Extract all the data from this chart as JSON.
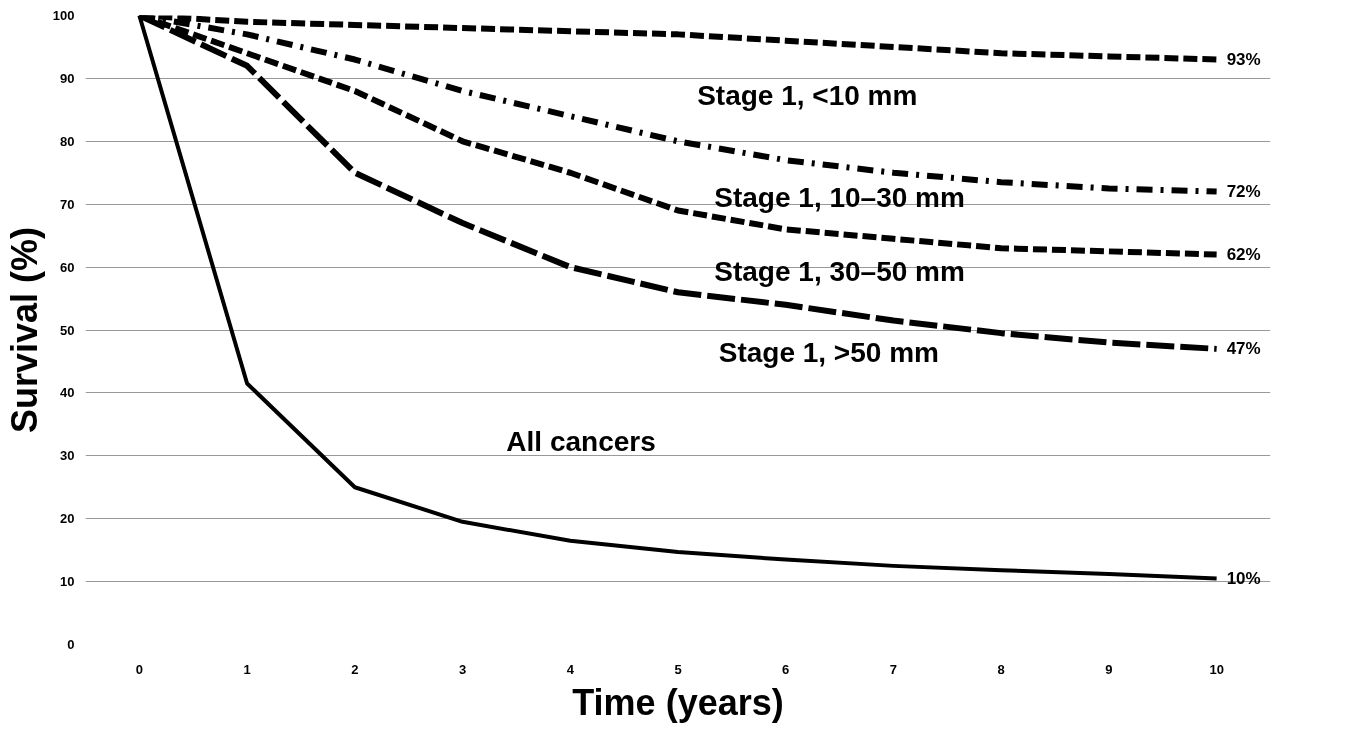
{
  "chart_data": {
    "type": "line",
    "xlabel": "Time (years)",
    "ylabel": "Survival (%)",
    "x": [
      0,
      1,
      2,
      3,
      4,
      5,
      6,
      7,
      8,
      9,
      10
    ],
    "xlim": [
      -0.5,
      10.5
    ],
    "xticks": [
      0,
      1,
      2,
      3,
      4,
      5,
      6,
      7,
      8,
      9,
      10
    ],
    "ylim": [
      0,
      100
    ],
    "yticks": [
      0,
      10,
      20,
      30,
      40,
      50,
      60,
      70,
      80,
      90,
      100
    ],
    "grid": "y",
    "marker": "none",
    "series": [
      {
        "name": "Stage 1, <10 mm",
        "color": "#000000",
        "line_style": "dashed",
        "values": [
          100,
          99,
          98.5,
          98,
          97.5,
          97,
          96,
          95,
          94,
          93.5,
          93
        ],
        "value_labels": [
          null,
          null,
          null,
          null,
          null,
          null,
          null,
          null,
          null,
          null,
          "93%"
        ]
      },
      {
        "name": "Stage 1, 10–30 mm",
        "color": "#000000",
        "line_style": "dashdot",
        "values": [
          100,
          97,
          93,
          88,
          84,
          80,
          77,
          75,
          73.5,
          72.5,
          72
        ],
        "value_labels": [
          null,
          null,
          null,
          null,
          null,
          null,
          null,
          null,
          null,
          null,
          "72%"
        ]
      },
      {
        "name": "Stage 1, 30–50 mm",
        "color": "#000000",
        "line_style": "dashed",
        "values": [
          100,
          94,
          88,
          80,
          75,
          69,
          66,
          64.5,
          63,
          62.5,
          62
        ],
        "value_labels": [
          null,
          null,
          null,
          null,
          null,
          null,
          null,
          null,
          null,
          null,
          "62%"
        ]
      },
      {
        "name": "Stage 1, >50 mm",
        "color": "#000000",
        "line_style": "longdash",
        "values": [
          100,
          92,
          75,
          67,
          60,
          56,
          54,
          51.5,
          49.5,
          48,
          47
        ],
        "value_labels": [
          null,
          null,
          null,
          null,
          null,
          null,
          null,
          null,
          null,
          null,
          "47%"
        ]
      },
      {
        "name": "All cancers",
        "color": "#000000",
        "line_style": "solid",
        "values": [
          100,
          41.5,
          25,
          19.5,
          16.5,
          14.7,
          13.5,
          12.5,
          11.8,
          11.2,
          10.5
        ],
        "value_labels": [
          null,
          null,
          null,
          null,
          null,
          null,
          null,
          null,
          null,
          null,
          "10%"
        ]
      }
    ]
  }
}
